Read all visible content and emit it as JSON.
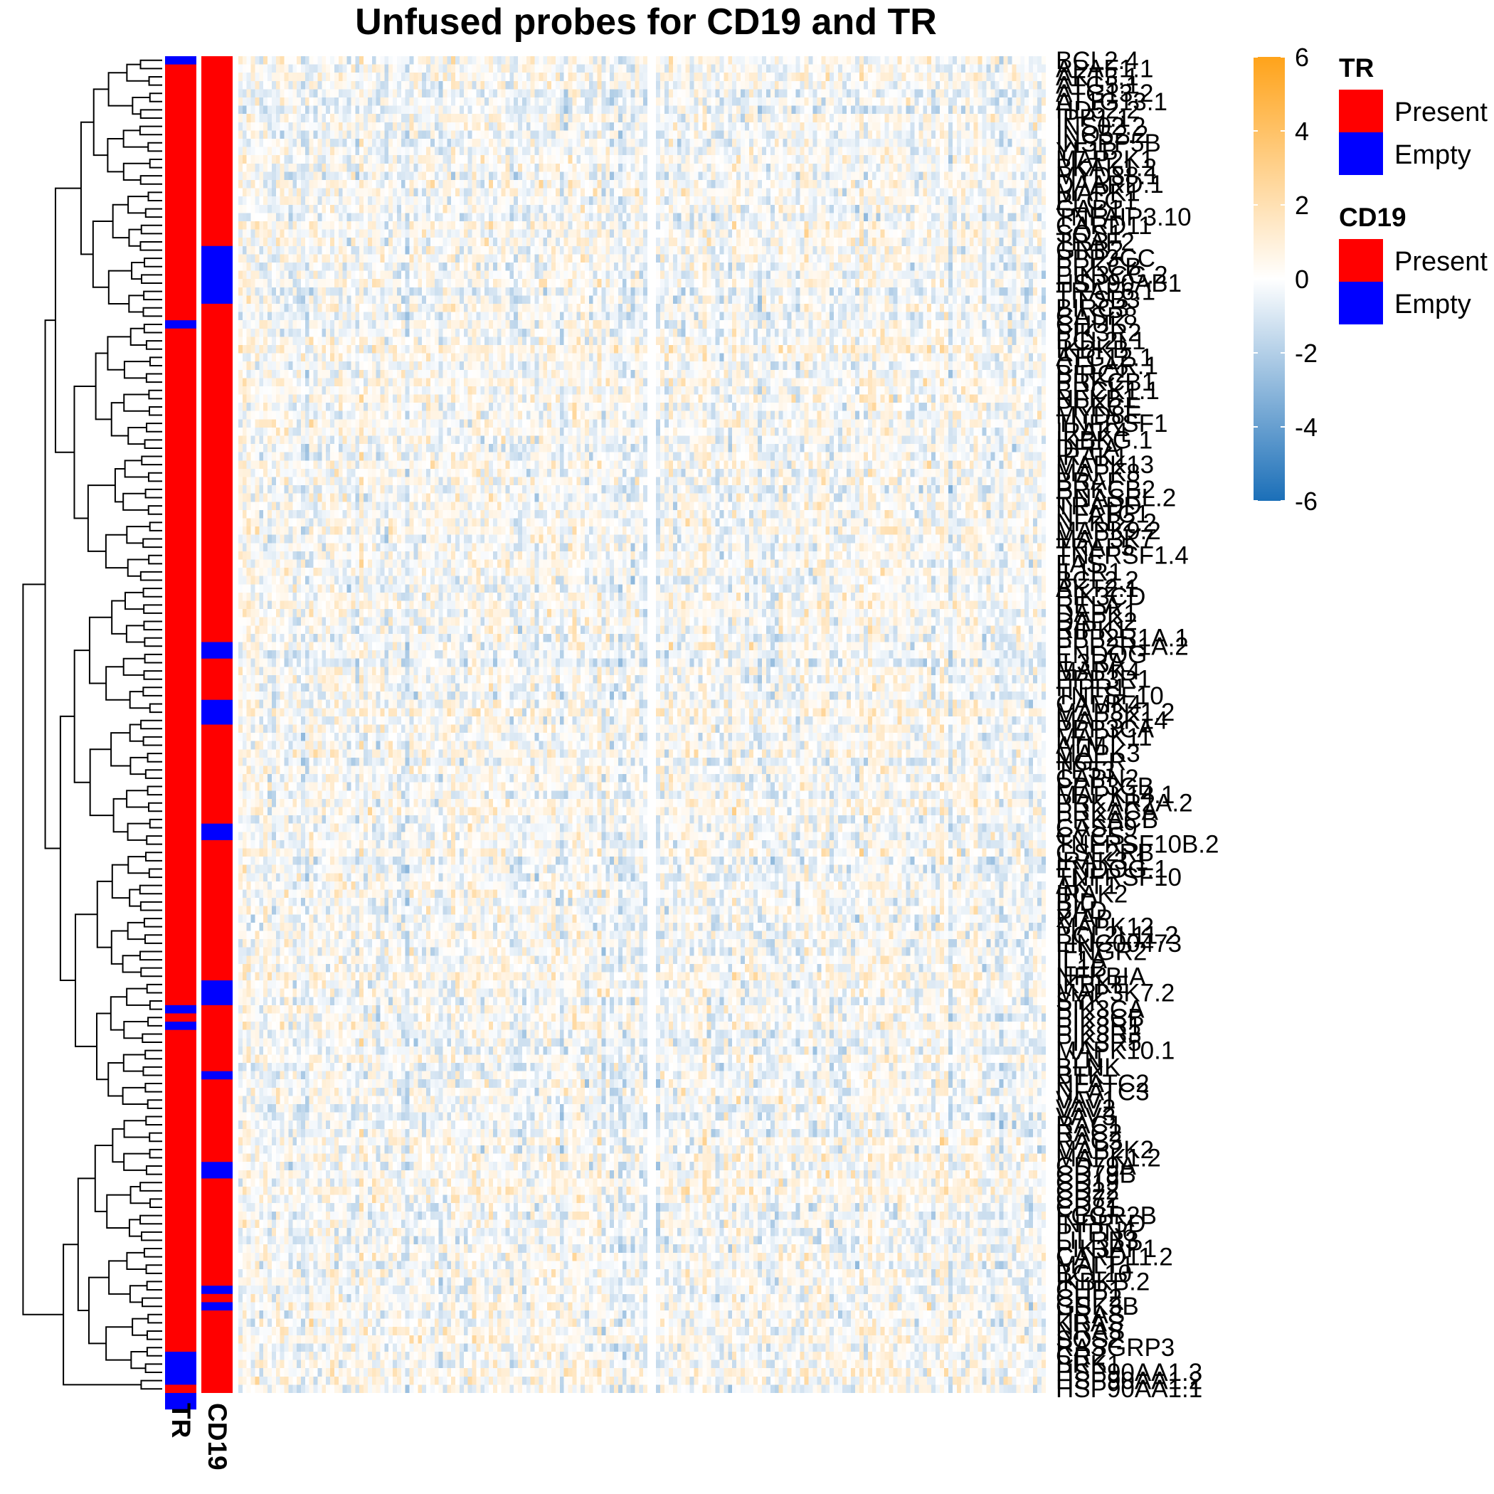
{
  "chart_data": {
    "type": "heatmap",
    "title": "Unfused probes for CD19 and TR",
    "row_labels": [
      "BCL2.4",
      "APAF1.1",
      "AKT3.1",
      "ATG5.1",
      "ATG13.2",
      "AT1G13.1",
      "HD52.2",
      "IPP1.1",
      "INS02.2",
      "INO52.2",
      "INSPP5B",
      "YF1B",
      "MAP2K1",
      "BKAK1.2",
      "MYD88.1",
      "DAARD.1",
      "MAPK1",
      "PLCG1",
      "GAB1",
      "TNFAIP3.10",
      "CARD11",
      "SOS1",
      "TRAF2",
      "GRB2",
      "PPP3CC",
      "PRKCB",
      "PIK3CG.2",
      "HSP90AB1",
      "TRAF6.1",
      "TIFSB3",
      "BIRC3",
      "CASP8",
      "CHUK",
      "PIK3R2",
      "BCL2L1",
      "IKBKB",
      "ATG12.1",
      "CFLAR.1",
      "BIRC2",
      "PRKCB1",
      "BRCK1.1",
      "NFKB1",
      "PRKCE",
      "MYD8E",
      "TNFRSF1",
      "IRAK4",
      "IKBKG.1",
      "DFFA",
      "IRAK1",
      "MAPK13",
      "MAPK8",
      "BRAF",
      "PRKCB2",
      "RNASEL.2",
      "TRADD",
      "NFATC1",
      "NFKB2.2",
      "MAPK9.2",
      "MAP3K7",
      "TRAF5",
      "TNFRSF1.4",
      "FAS",
      "IL1R1",
      "BCL2.2",
      "AKT2.1",
      "PIK3CD",
      "RELA",
      "DAPK1",
      "DAPK2",
      "RIPK1",
      "PPP2R1A.1",
      "PPP2R1A.2",
      "ENDOG",
      "IL3RA",
      "MAPK4",
      "PPP3R1",
      "ITPR1",
      "TNFSF10",
      "CAMK4",
      "MAP3K1.2",
      "MAP3K14",
      "PPP3CA",
      "MAPK11",
      "ATM",
      "MAPK3",
      "NGFR",
      "TP53",
      "CAPN2",
      "PPP3CB",
      "MAPK14.1",
      "PRKAR2A.2",
      "PRKACA",
      "PRKACB",
      "CASP9",
      "CYCS",
      "TNFRSF10B.2",
      "CSF2RB",
      "IRAK3.1",
      "ENDOG.1",
      "TNFRSF10",
      "AKT1",
      "IRAK2",
      "BID",
      "BAD",
      "XIAP",
      "MAPK12",
      "BCL2L11.2",
      "LINC00473",
      "IFNGR2",
      "IL1A",
      "IL1B",
      "NFKBIA",
      "IKBKE",
      "MAP3K7.2",
      "SYK",
      "PIK3CA",
      "PIK3CB",
      "PIK3R1",
      "PIK3R3",
      "PIK3R5",
      "MAPK10.1",
      "LYN",
      "BLNK",
      "BTK",
      "NFATC2",
      "NFATC3",
      "VAV1",
      "VAV2",
      "VAV3",
      "RAC1",
      "RAC2",
      "RAC3",
      "MAP2K2",
      "MAPK1.2",
      "CD79A",
      "CD79B",
      "CD19",
      "CD22",
      "CD72",
      "CD81",
      "FCGR2B",
      "INPP5D",
      "PTPN6",
      "LILRB3",
      "PIK3AP1",
      "CARD11.2",
      "MALT1",
      "BCL10",
      "IKBKB.2",
      "CHP1",
      "CHP2",
      "GSK3B",
      "HRAS",
      "KRAS",
      "NRAS",
      "SOS2",
      "RASGRP3",
      "CR2",
      "BRK1",
      "HSP90AA1.3",
      "HSP90AA1.2",
      "HSP90AA1.1"
    ],
    "series": [],
    "col_count": 190,
    "col_split_after": 98,
    "value_range": [
      -6,
      6
    ],
    "colorbar_ticks": [
      6,
      4,
      2,
      0,
      -2,
      -4,
      -6
    ],
    "colormap": {
      "low": "#1b6fb8",
      "mid": "#ffffff",
      "high": "#ffa31a"
    },
    "grid": false,
    "row_dendrogram": "left",
    "annotations": [
      {
        "name": "TR",
        "column_label": "TR",
        "empty_row_ranges": [
          [
            0,
            1
          ],
          [
            32,
            33
          ],
          [
            115,
            116
          ],
          [
            117,
            118
          ],
          [
            157,
            161
          ],
          [
            162,
            164
          ],
          [
            178,
            180
          ]
        ]
      },
      {
        "name": "CD19",
        "column_label": "CD19",
        "empty_row_ranges": [
          [
            23,
            30
          ],
          [
            71,
            73
          ],
          [
            78,
            81
          ],
          [
            93,
            95
          ],
          [
            112,
            115
          ],
          [
            123,
            124
          ],
          [
            134,
            136
          ],
          [
            149,
            150
          ],
          [
            151,
            152
          ],
          [
            180,
            181
          ]
        ]
      }
    ],
    "legends": [
      {
        "title": "TR",
        "entries": [
          {
            "label": "Present",
            "color": "#ff0000"
          },
          {
            "label": "Empty",
            "color": "#0000ff"
          }
        ]
      },
      {
        "title": "CD19",
        "entries": [
          {
            "label": "Present",
            "color": "#ff0000"
          },
          {
            "label": "Empty",
            "color": "#0000ff"
          }
        ]
      }
    ],
    "legend_position": "right"
  }
}
